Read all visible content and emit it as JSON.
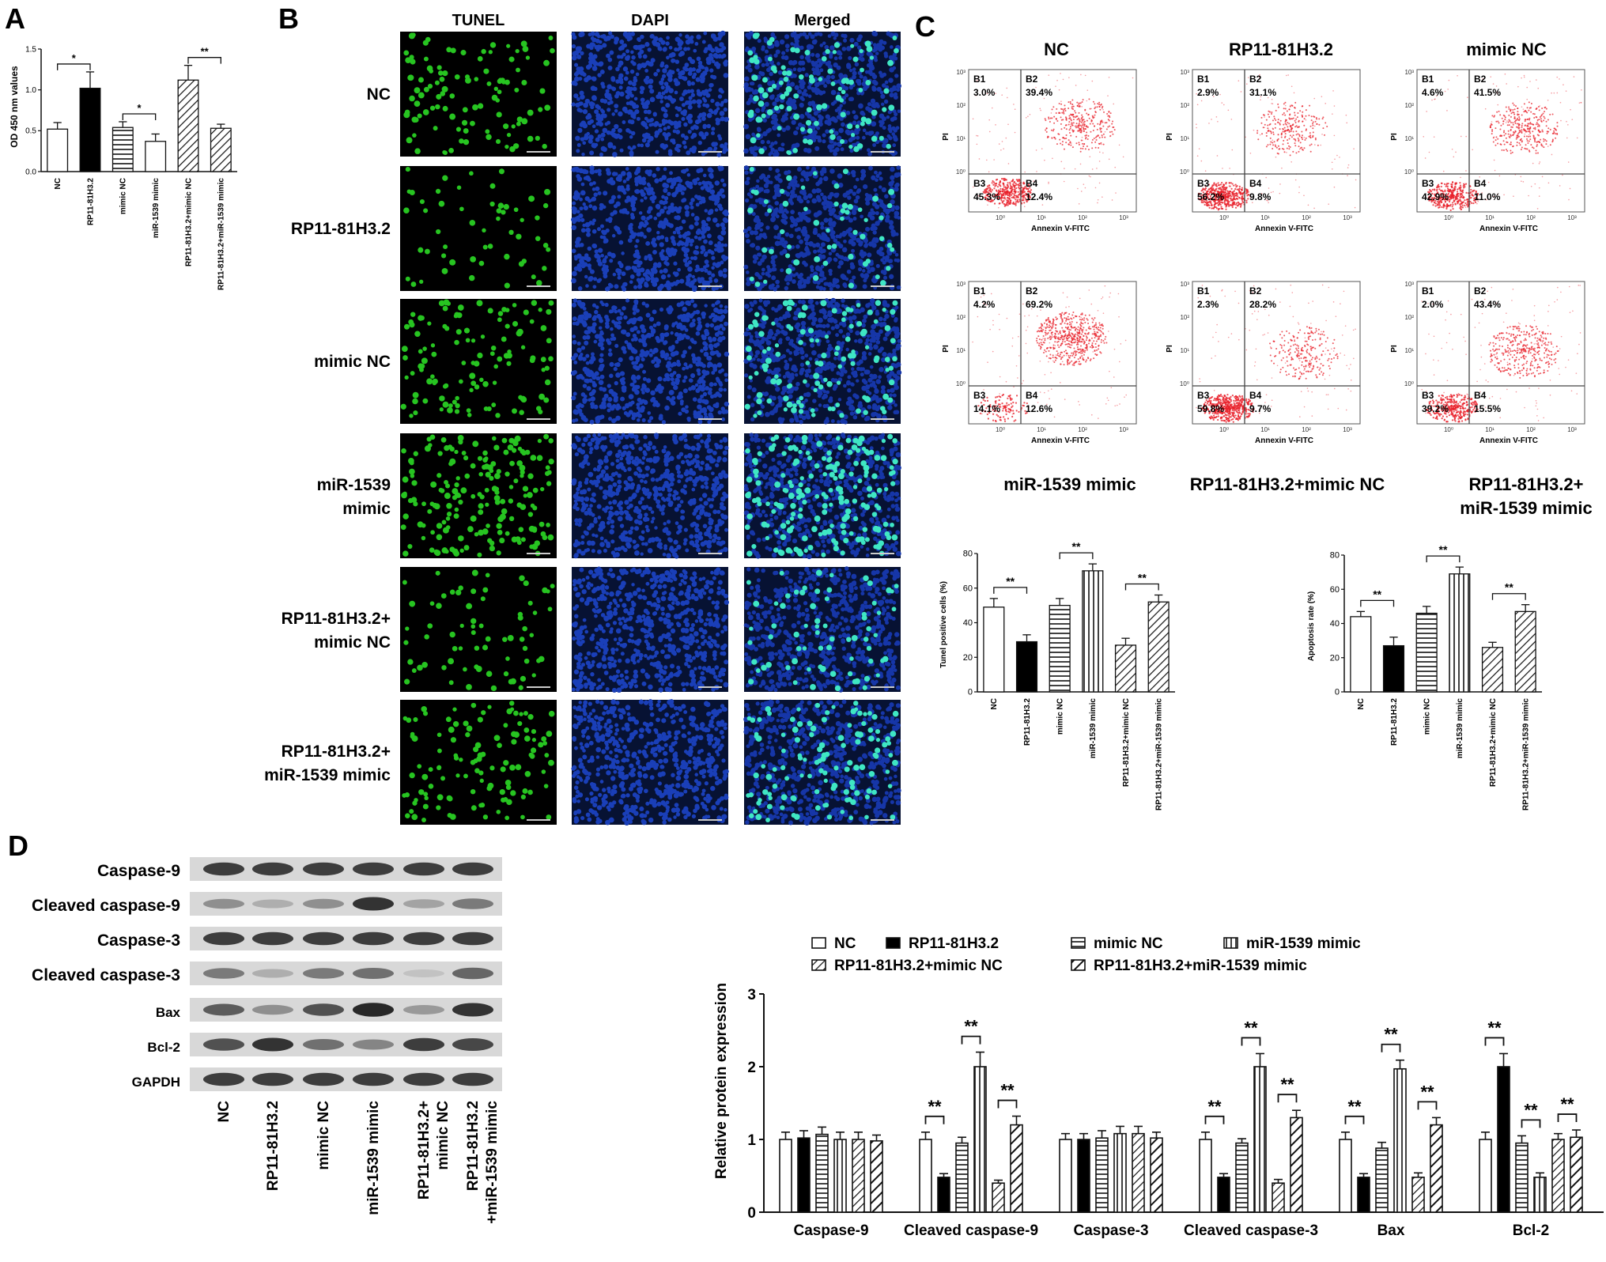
{
  "panels": {
    "a": "A",
    "b": "B",
    "c": "C",
    "d": "D"
  },
  "colors": {
    "tunel": "#27c421",
    "dapi": "#1a3fb8",
    "merged_bg": "#1636a8",
    "merged_dot": "#3fe7c4",
    "flow": "#e8202a"
  },
  "panel_a": {
    "ylabel": "OD 450 nm values",
    "chart_data": {
      "type": "bar",
      "categories": [
        "NC",
        "RP11-81H3.2",
        "mimic NC",
        "miR-1539 mimic",
        "RP11-81H3.2+mimic NC",
        "RP11-81H3.2+miR-1539 mimic"
      ],
      "values": [
        0.52,
        1.02,
        0.54,
        0.37,
        1.12,
        0.53
      ],
      "errors": [
        0.08,
        0.2,
        0.07,
        0.09,
        0.18,
        0.05
      ],
      "patterns": [
        "open",
        "solid",
        "hlines",
        "open",
        "diag",
        "diag"
      ],
      "yticks": [
        "0.0",
        "0.5",
        "1.0",
        "1.5"
      ],
      "ylim": [
        0,
        1.5
      ],
      "sig": [
        {
          "from": 0,
          "to": 1,
          "text": "*"
        },
        {
          "from": 2,
          "to": 3,
          "text": "*"
        },
        {
          "from": 4,
          "to": 5,
          "text": "**"
        }
      ]
    }
  },
  "panel_b": {
    "columns": [
      "TUNEL",
      "DAPI",
      "Merged"
    ],
    "rows": [
      "NC",
      "RP11-81H3.2",
      "mimic NC",
      "miR-1539\nmimic",
      "RP11-81H3.2+\nmimic NC",
      "RP11-81H3.2+\nmiR-1539 mimic"
    ],
    "tunel_density": [
      110,
      55,
      120,
      190,
      70,
      120
    ]
  },
  "panel_c": {
    "titles_top": [
      "NC",
      "RP11-81H3.2",
      "mimic NC"
    ],
    "titles_bottom": [
      "miR-1539 mimic",
      "RP11-81H3.2+mimic NC",
      "RP11-81H3.2+\nmiR-1539 mimic"
    ],
    "xaxis": "Annexin V-FITC",
    "yaxis": "PI",
    "quad_names": [
      "B1",
      "B2",
      "B3",
      "B4"
    ],
    "plots": [
      {
        "q": [
          "3.0%",
          "39.4%",
          "45.3%",
          "12.4%"
        ]
      },
      {
        "q": [
          "2.9%",
          "31.1%",
          "56.2%",
          "9.8%"
        ]
      },
      {
        "q": [
          "4.6%",
          "41.5%",
          "42.9%",
          "11.0%"
        ]
      },
      {
        "q": [
          "4.2%",
          "69.2%",
          "14.1%",
          "12.6%"
        ]
      },
      {
        "q": [
          "2.3%",
          "28.2%",
          "59.8%",
          "9.7%"
        ]
      },
      {
        "q": [
          "2.0%",
          "43.4%",
          "39.2%",
          "15.5%"
        ]
      }
    ],
    "tunel_chart": {
      "type": "bar",
      "ylabel": "Tunel positive cells (%)",
      "categories": [
        "NC",
        "RP11-81H3.2",
        "mimic NC",
        "miR-1539 mimic",
        "RP11-81H3.2+mimic NC",
        "RP11-81H3.2+miR-1539 mimic"
      ],
      "values": [
        49,
        29,
        50,
        70,
        27,
        52
      ],
      "errors": [
        5,
        4,
        4,
        4,
        4,
        4
      ],
      "patterns": [
        "open",
        "solid",
        "hlines",
        "vlines",
        "diag",
        "diag"
      ],
      "yticks": [
        "0",
        "20",
        "40",
        "60",
        "80"
      ],
      "ylim": [
        0,
        80
      ],
      "sig": [
        {
          "from": 0,
          "to": 1,
          "text": "**"
        },
        {
          "from": 2,
          "to": 3,
          "text": "**"
        },
        {
          "from": 4,
          "to": 5,
          "text": "**"
        }
      ]
    },
    "apoptosis_chart": {
      "type": "bar",
      "ylabel": "Apoptosis rate (%)",
      "categories": [
        "NC",
        "RP11-81H3.2",
        "mimic NC",
        "miR-1539 mimic",
        "RP11-81H3.2+mimic NC",
        "RP11-81H3.2+miR-1539 mimic"
      ],
      "values": [
        44,
        27,
        46,
        69,
        26,
        47
      ],
      "errors": [
        3,
        5,
        4,
        4,
        3,
        4
      ],
      "patterns": [
        "open",
        "solid",
        "hlines",
        "vlines",
        "diag",
        "diag"
      ],
      "yticks": [
        "0",
        "20",
        "40",
        "60",
        "80"
      ],
      "ylim": [
        0,
        80
      ],
      "sig": [
        {
          "from": 0,
          "to": 1,
          "text": "**"
        },
        {
          "from": 2,
          "to": 3,
          "text": "**"
        },
        {
          "from": 4,
          "to": 5,
          "text": "**"
        }
      ]
    }
  },
  "panel_d": {
    "blot_labels": [
      "Caspase-9",
      "Cleaved caspase-9",
      "Caspase-3",
      "Cleaved caspase-3",
      "Bax",
      "Bcl-2",
      "GAPDH"
    ],
    "lane_labels": [
      "NC",
      "RP11-81H3.2",
      "mimic NC",
      "miR-1539 mimic",
      "RP11-81H3.2+\nmimic NC",
      "RP11-81H3.2\n+miR-1539 mimic"
    ],
    "band_intensity": [
      [
        0.85,
        0.85,
        0.85,
        0.85,
        0.85,
        0.85
      ],
      [
        0.45,
        0.3,
        0.45,
        0.9,
        0.35,
        0.55
      ],
      [
        0.85,
        0.85,
        0.85,
        0.85,
        0.85,
        0.85
      ],
      [
        0.55,
        0.3,
        0.55,
        0.6,
        0.2,
        0.65
      ],
      [
        0.7,
        0.45,
        0.75,
        0.95,
        0.4,
        0.9
      ],
      [
        0.75,
        0.9,
        0.6,
        0.5,
        0.85,
        0.8
      ],
      [
        0.85,
        0.85,
        0.85,
        0.85,
        0.85,
        0.85
      ]
    ],
    "chart_data": {
      "type": "bar",
      "ylabel": "Relative protein expression",
      "categories": [
        "Caspase-9",
        "Cleaved caspase-9",
        "Caspase-3",
        "Cleaved caspase-3",
        "Bax",
        "Bcl-2"
      ],
      "series": [
        {
          "name": "NC",
          "pattern": "open",
          "values": [
            1.0,
            1.0,
            1.0,
            1.0,
            1.0,
            1.0
          ],
          "errors": [
            0.1,
            0.1,
            0.08,
            0.1,
            0.1,
            0.1
          ]
        },
        {
          "name": "RP11-81H3.2",
          "pattern": "solid",
          "values": [
            1.02,
            0.48,
            1.0,
            0.48,
            0.48,
            2.0
          ],
          "errors": [
            0.1,
            0.05,
            0.08,
            0.05,
            0.05,
            0.18
          ]
        },
        {
          "name": "mimic NC",
          "pattern": "hlines",
          "values": [
            1.07,
            0.95,
            1.02,
            0.95,
            0.88,
            0.95
          ],
          "errors": [
            0.1,
            0.08,
            0.1,
            0.06,
            0.08,
            0.1
          ]
        },
        {
          "name": "miR-1539 mimic",
          "pattern": "vlines",
          "values": [
            1.0,
            2.0,
            1.08,
            2.0,
            1.97,
            0.48
          ],
          "errors": [
            0.1,
            0.2,
            0.1,
            0.18,
            0.12,
            0.06
          ]
        },
        {
          "name": "RP11-81H3.2+mimic NC",
          "pattern": "diag",
          "values": [
            1.0,
            0.4,
            1.08,
            0.4,
            0.48,
            1.0
          ],
          "errors": [
            0.1,
            0.04,
            0.1,
            0.05,
            0.06,
            0.08
          ]
        },
        {
          "name": "RP11-81H3.2+miR-1539 mimic",
          "pattern": "diagwide",
          "values": [
            0.98,
            1.2,
            1.02,
            1.3,
            1.2,
            1.03
          ],
          "errors": [
            0.08,
            0.12,
            0.08,
            0.1,
            0.1,
            0.1
          ]
        }
      ],
      "yticks": [
        "0",
        "1",
        "2",
        "3"
      ],
      "ylim": [
        0,
        3
      ],
      "sig_text": "**",
      "sig": [
        {
          "group": 1,
          "from": 0,
          "to": 1
        },
        {
          "group": 1,
          "from": 2,
          "to": 3
        },
        {
          "group": 1,
          "from": 4,
          "to": 5
        },
        {
          "group": 3,
          "from": 0,
          "to": 1
        },
        {
          "group": 3,
          "from": 2,
          "to": 3
        },
        {
          "group": 3,
          "from": 4,
          "to": 5
        },
        {
          "group": 4,
          "from": 0,
          "to": 1
        },
        {
          "group": 4,
          "from": 2,
          "to": 3
        },
        {
          "group": 4,
          "from": 4,
          "to": 5
        },
        {
          "group": 5,
          "from": 0,
          "to": 1
        },
        {
          "group": 5,
          "from": 2,
          "to": 3
        },
        {
          "group": 5,
          "from": 4,
          "to": 5
        }
      ]
    }
  }
}
